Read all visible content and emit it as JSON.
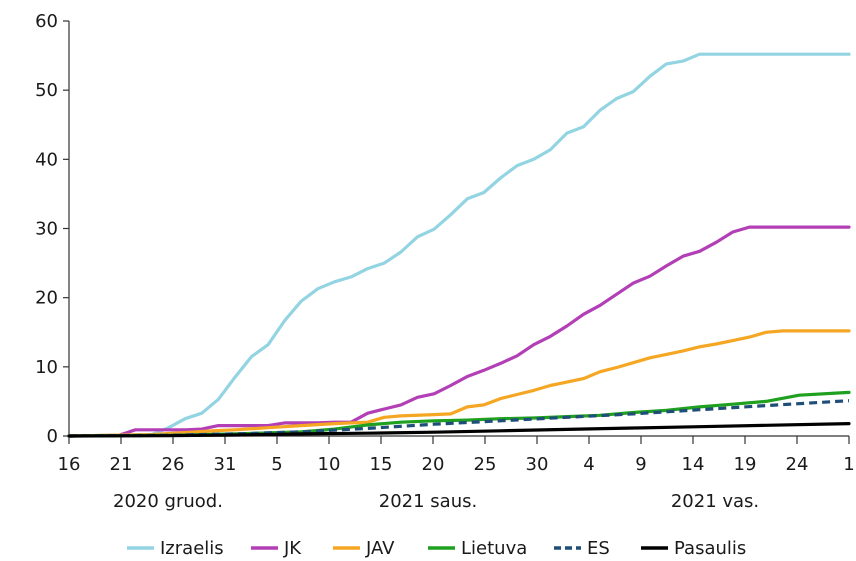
{
  "chart_data": {
    "type": "line",
    "x_tick_labels": [
      "16",
      "21",
      "26",
      "31",
      "5",
      "10",
      "15",
      "20",
      "25",
      "30",
      "4",
      "9",
      "14",
      "19",
      "24",
      "1"
    ],
    "x_groups": [
      "2020 gruod.",
      "2021 saus.",
      "2021 vas."
    ],
    "y_tick_labels": [
      "0",
      "10",
      "20",
      "30",
      "40",
      "50",
      "60"
    ],
    "ylim": [
      0,
      60
    ],
    "x_days": {
      "start": "2020-12-16",
      "end": "2021-02-01"
    },
    "grid": false,
    "legend_position": "bottom",
    "series": [
      {
        "name": "Izraelis",
        "color": "#93d4e2",
        "dash": "solid",
        "x": [
          0,
          5,
          6,
          7,
          8,
          9,
          10,
          11,
          12,
          13,
          14,
          15,
          16,
          17,
          18,
          19,
          20,
          21,
          22,
          23,
          24,
          25,
          26,
          27,
          28,
          29,
          30,
          31,
          32,
          33,
          34,
          35,
          36,
          37,
          38,
          39,
          40,
          41,
          42,
          43,
          44,
          45,
          46,
          47
        ],
        "y": [
          0,
          0.2,
          1.2,
          2.5,
          3.3,
          5.3,
          8.5,
          11.5,
          13.2,
          16.7,
          19.5,
          21.3,
          22.3,
          23.0,
          24.2,
          25.0,
          26.6,
          28.8,
          29.9,
          32.0,
          34.3,
          35.2,
          37.3,
          39.1,
          40.0,
          41.4,
          43.8,
          44.7,
          47.1,
          48.8,
          49.8,
          52.0,
          53.8,
          54.2,
          55.2,
          55.2,
          55.2,
          55.2,
          55.2,
          55.2,
          55.2,
          55.2,
          55.2,
          55.2
        ]
      },
      {
        "name": "JK",
        "color": "#b23fb5",
        "dash": "solid",
        "x": [
          0,
          3,
          4,
          5,
          6,
          7,
          8,
          9,
          10,
          11,
          12,
          13,
          14,
          15,
          16,
          17,
          18,
          19,
          20,
          21,
          22,
          23,
          24,
          25,
          26,
          27,
          28,
          29,
          30,
          31,
          32,
          33,
          34,
          35,
          36,
          37,
          38,
          39,
          40,
          41,
          42,
          43,
          44,
          45,
          46,
          47
        ],
        "y": [
          0,
          0.1,
          0.9,
          0.9,
          0.9,
          0.9,
          1.0,
          1.5,
          1.5,
          1.5,
          1.5,
          1.9,
          1.9,
          1.9,
          2.0,
          2.0,
          3.3,
          3.9,
          4.5,
          5.6,
          6.1,
          7.3,
          8.6,
          9.5,
          10.5,
          11.6,
          13.2,
          14.4,
          15.9,
          17.6,
          18.9,
          20.5,
          22.1,
          23.1,
          24.6,
          26.0,
          26.7,
          28.0,
          29.5,
          30.2,
          30.2,
          30.2,
          30.2,
          30.2,
          30.2,
          30.2
        ]
      },
      {
        "name": "JAV",
        "color": "#f5a623",
        "dash": "solid",
        "x": [
          0,
          5,
          9,
          10,
          12,
          14,
          16,
          18,
          19,
          20,
          22,
          23,
          24,
          25,
          26,
          27,
          28,
          29,
          30,
          31,
          32,
          33,
          34,
          35,
          36,
          37,
          38,
          39,
          40,
          41,
          42,
          43,
          44,
          45,
          46,
          47
        ],
        "y": [
          0,
          0.2,
          0.8,
          0.9,
          1.2,
          1.5,
          1.8,
          2.0,
          2.7,
          2.9,
          3.1,
          3.2,
          4.2,
          4.5,
          5.4,
          6.0,
          6.6,
          7.3,
          7.8,
          8.3,
          9.3,
          9.9,
          10.6,
          11.3,
          11.8,
          12.3,
          12.9,
          13.3,
          13.8,
          14.3,
          15.0,
          15.2,
          15.2,
          15.2,
          15.2,
          15.2
        ]
      },
      {
        "name": "Lietuva",
        "color": "#1fa01f",
        "dash": "solid",
        "x": [
          0,
          6,
          10,
          14,
          16,
          18,
          20,
          22,
          24,
          26,
          28,
          30,
          32,
          34,
          36,
          38,
          40,
          42,
          44,
          47
        ],
        "y": [
          0,
          0.1,
          0.3,
          0.6,
          1.0,
          1.6,
          2.0,
          2.2,
          2.3,
          2.5,
          2.6,
          2.8,
          3.0,
          3.4,
          3.7,
          4.2,
          4.6,
          5.0,
          5.9,
          6.3
        ]
      },
      {
        "name": "ES",
        "color": "#1f4e79",
        "dash": "8 5",
        "x": [
          0,
          6,
          10,
          14,
          18,
          22,
          26,
          30,
          34,
          38,
          42,
          47
        ],
        "y": [
          0,
          0.1,
          0.3,
          0.6,
          1.1,
          1.7,
          2.2,
          2.7,
          3.2,
          3.8,
          4.4,
          5.1
        ]
      },
      {
        "name": "Pasaulis",
        "color": "#000000",
        "dash": "solid",
        "x": [
          0,
          6,
          10,
          14,
          18,
          22,
          26,
          30,
          34,
          38,
          42,
          47
        ],
        "y": [
          0,
          0.05,
          0.15,
          0.3,
          0.4,
          0.55,
          0.75,
          0.95,
          1.15,
          1.35,
          1.55,
          1.8
        ]
      }
    ]
  }
}
